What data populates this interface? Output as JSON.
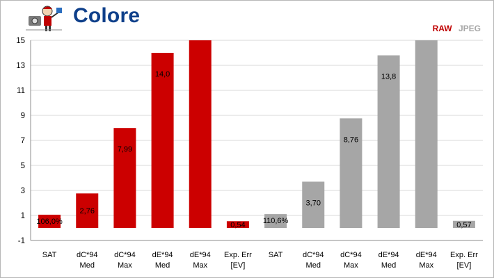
{
  "page": {
    "title": "Colore",
    "legend": {
      "raw": "RAW",
      "jpeg": "JPEG"
    },
    "logo": "photographer-mascot-logo"
  },
  "colors": {
    "raw": "#cc0000",
    "jpeg": "#a6a6a6",
    "grid": "#d9d9d9",
    "title": "#0e3f8a"
  },
  "chart_data": {
    "type": "bar",
    "title": "Colore",
    "ylim": [
      -1,
      15
    ],
    "yticks": [
      -1,
      1,
      3,
      5,
      7,
      9,
      11,
      13,
      15
    ],
    "grid": "horizontal",
    "legend_placement": "top-right",
    "categories": [
      [
        "SAT"
      ],
      [
        "dC*94",
        "Med"
      ],
      [
        "dC*94",
        "Max"
      ],
      [
        "dE*94",
        "Med"
      ],
      [
        "dE*94",
        "Max"
      ],
      [
        "Exp. Err",
        "[EV]"
      ],
      [
        "SAT"
      ],
      [
        "dC*94",
        "Med"
      ],
      [
        "dC*94",
        "Max"
      ],
      [
        "dE*94",
        "Med"
      ],
      [
        "dE*94",
        "Max"
      ],
      [
        "Exp. Err",
        "[EV]"
      ]
    ],
    "series": [
      {
        "name": "RAW",
        "color": "#cc0000",
        "values": [
          1.06,
          2.76,
          7.99,
          14.0,
          15.0,
          0.54,
          null,
          null,
          null,
          null,
          null,
          null
        ],
        "labels": [
          "106,0%",
          "2,76",
          "7,99",
          "14,0",
          "",
          "0,54",
          "",
          "",
          "",
          "",
          "",
          ""
        ]
      },
      {
        "name": "JPEG",
        "color": "#a6a6a6",
        "values": [
          null,
          null,
          null,
          null,
          null,
          null,
          1.106,
          3.7,
          8.76,
          13.8,
          15.0,
          0.57
        ],
        "labels": [
          "",
          "",
          "",
          "",
          "",
          "",
          "110,6%",
          "3,70",
          "8,76",
          "13,8",
          "",
          "0,57"
        ]
      }
    ]
  }
}
